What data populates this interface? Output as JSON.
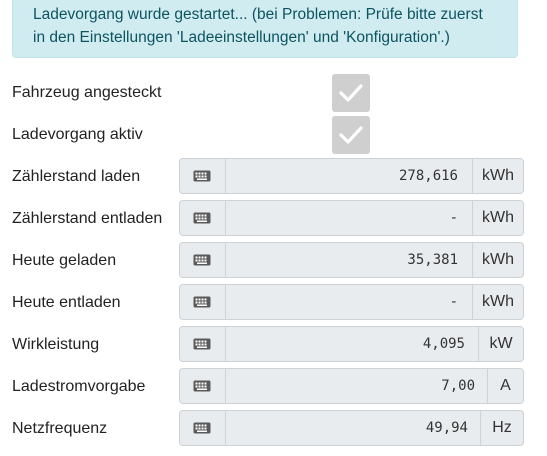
{
  "alert": {
    "line1": "Ladevorgang wurde gestartet... (bei Problemen: Prüfe bitte zuerst",
    "line2": "in den Einstellungen 'Ladeeinstellungen' und 'Konfiguration'.)"
  },
  "status": [
    {
      "label": "Fahrzeug angesteckt",
      "checked": true
    },
    {
      "label": "Ladevorgang aktiv",
      "checked": true
    }
  ],
  "meters": [
    {
      "label": "Zählerstand laden",
      "value": "278,616",
      "unit": "kWh"
    },
    {
      "label": "Zählerstand entladen",
      "value": "-",
      "unit": "kWh"
    },
    {
      "label": "Heute geladen",
      "value": "35,381",
      "unit": "kWh"
    },
    {
      "label": "Heute entladen",
      "value": "-",
      "unit": "kWh"
    },
    {
      "label": "Wirkleistung",
      "value": "4,095",
      "unit": "kW"
    },
    {
      "label": "Ladestromvorgabe",
      "value": "7,00",
      "unit": "A"
    },
    {
      "label": "Netzfrequenz",
      "value": "49,94",
      "unit": "Hz"
    }
  ],
  "icons": {
    "keypad": "keyboard-icon",
    "check": "check-icon"
  },
  "colors": {
    "alert_bg": "#d1ecf1",
    "alert_text": "#0c5460",
    "readonly_bg": "#e9ecef",
    "checkbox_bg": "#cfcfcf"
  }
}
